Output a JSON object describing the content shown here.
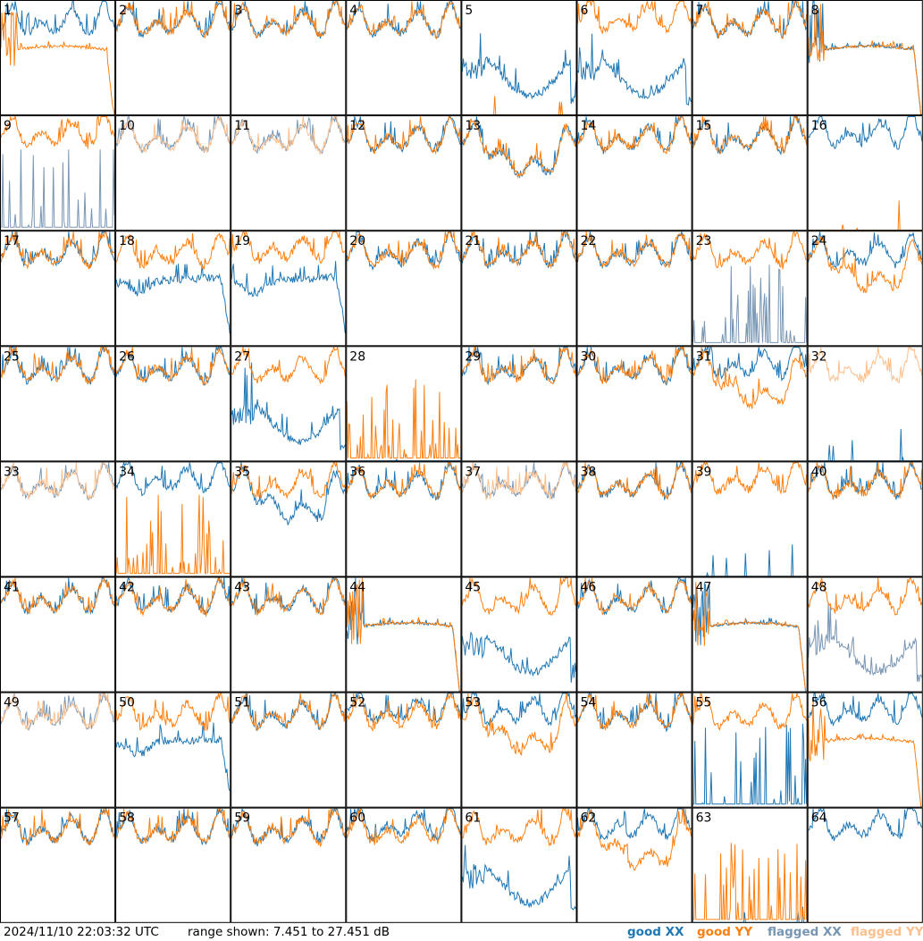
{
  "footer": {
    "timestamp": "2024/11/10 22:03:32 UTC",
    "range_text": "range shown: 7.451 to 27.451 dB"
  },
  "legend": {
    "good_xx": {
      "label": "good XX",
      "color": "#1f77b4"
    },
    "good_yy": {
      "label": "good YY",
      "color": "#ff7f0e"
    },
    "flagged_xx": {
      "label": "flagged XX",
      "color": "#7896b4"
    },
    "flagged_yy": {
      "label": "flagged YY",
      "color": "#fdbf8c"
    }
  },
  "chart_data": {
    "type": "line",
    "grid_layout": "8x8 small multiples",
    "y_range_db": [
      7.451,
      27.451
    ],
    "panel_labels": [
      "1",
      "2",
      "3",
      "4",
      "5",
      "6",
      "7",
      "8",
      "9",
      "10",
      "11",
      "12",
      "13",
      "14",
      "15",
      "16",
      "17",
      "18",
      "19",
      "20",
      "21",
      "22",
      "23",
      "24",
      "25",
      "26",
      "27",
      "28",
      "29",
      "30",
      "31",
      "32",
      "33",
      "34",
      "35",
      "36",
      "37",
      "38",
      "39",
      "40",
      "41",
      "42",
      "43",
      "44",
      "45",
      "46",
      "47",
      "48",
      "49",
      "50",
      "51",
      "52",
      "53",
      "54",
      "55",
      "56",
      "57",
      "58",
      "59",
      "60",
      "61",
      "62",
      "63",
      "64"
    ],
    "series_names": [
      "good XX",
      "good YY",
      "flagged XX",
      "flagged YY"
    ],
    "flagged": {
      "xx": [
        9,
        10,
        11,
        23,
        33,
        37,
        48,
        49
      ],
      "yy": [
        10,
        11,
        32,
        33,
        37,
        49
      ]
    },
    "panel_shapes": {
      "xx": {
        "5": "dip",
        "6": "dip",
        "8": "hump",
        "9": "spiky",
        "13": "sag",
        "16": "hi",
        "18": "droop",
        "19": "droop",
        "23": "spiky",
        "27": "dip",
        "28": "flat",
        "31": "hi",
        "32": "flat",
        "34": "hi",
        "35": "sag",
        "39": "flat",
        "44": "hump",
        "45": "dip",
        "47": "hump",
        "48": "dip",
        "50": "droop",
        "52": "hi",
        "53": "hi",
        "55": "spiky",
        "56": "hi",
        "60": "hi",
        "61": "dip",
        "62": "hi",
        "63": "flat",
        "64": "hi"
      },
      "yy": {
        "1": "hump",
        "5": "flat",
        "6": "hi",
        "8": "hump",
        "9": "hi",
        "13": "sag",
        "16": "flat",
        "19": "hi",
        "24": "sag",
        "28": "spiky",
        "31": "sag",
        "34": "spiky",
        "39": "hi",
        "44": "hump",
        "47": "hump",
        "53": "sag",
        "56": "hump",
        "62": "sag",
        "63": "spiky",
        "64": "flat"
      }
    }
  }
}
